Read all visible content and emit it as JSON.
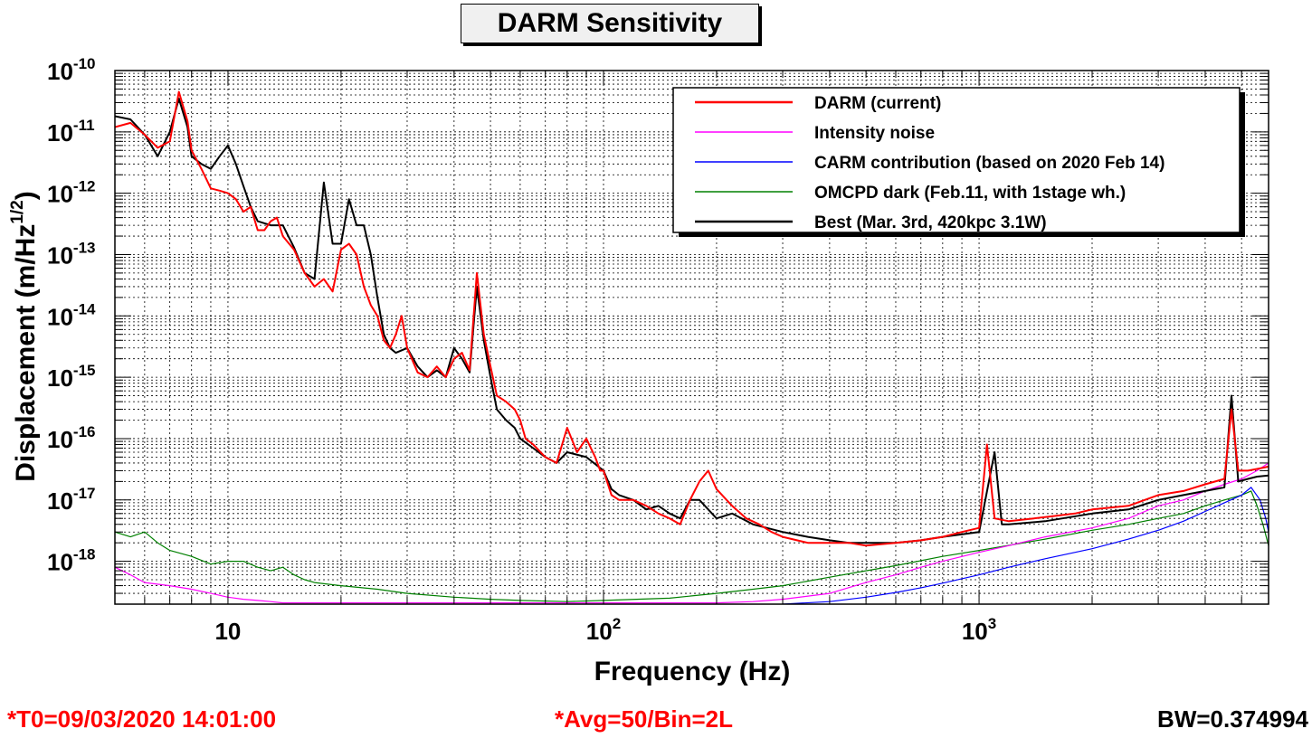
{
  "chart_data": {
    "type": "line",
    "title": "DARM Sensitivity",
    "xlabel": "Frequency (Hz)",
    "ylabel": "Displacement (m/Hz^1/2)",
    "ylabel_main": "Displacement (m/Hz",
    "ylabel_sup": "1/2",
    "ylabel_close": ")",
    "x_scale": "log",
    "y_scale": "log",
    "xlim": [
      5,
      5900
    ],
    "ylim": [
      2e-19,
      1e-10
    ],
    "grid": true,
    "legend_position": "top-right",
    "x_ticks": [
      {
        "value": 10,
        "base": "10",
        "exp": ""
      },
      {
        "value": 100,
        "base": "10",
        "exp": "2"
      },
      {
        "value": 1000,
        "base": "10",
        "exp": "3"
      }
    ],
    "y_ticks": [
      {
        "value": 1e-10,
        "base": "10",
        "exp": "-10"
      },
      {
        "value": 1e-11,
        "base": "10",
        "exp": "-11"
      },
      {
        "value": 1e-12,
        "base": "10",
        "exp": "-12"
      },
      {
        "value": 1e-13,
        "base": "10",
        "exp": "-13"
      },
      {
        "value": 1e-14,
        "base": "10",
        "exp": "-14"
      },
      {
        "value": 1e-15,
        "base": "10",
        "exp": "-15"
      },
      {
        "value": 1e-16,
        "base": "10",
        "exp": "-16"
      },
      {
        "value": 1e-17,
        "base": "10",
        "exp": "-17"
      },
      {
        "value": 1e-18,
        "base": "10",
        "exp": "-18"
      }
    ],
    "series": [
      {
        "name": "DARM (current)",
        "color": "#ff0000",
        "points": [
          [
            5,
            1.2e-11
          ],
          [
            5.5,
            1.4e-11
          ],
          [
            6,
            9e-12
          ],
          [
            6.5,
            5.5e-12
          ],
          [
            7,
            7e-12
          ],
          [
            7.4,
            4.5e-11
          ],
          [
            7.8,
            1.5e-11
          ],
          [
            8,
            5e-12
          ],
          [
            8.5,
            2.5e-12
          ],
          [
            9,
            1.2e-12
          ],
          [
            9.5,
            1.1e-12
          ],
          [
            10,
            1e-12
          ],
          [
            10.5,
            8e-13
          ],
          [
            11,
            5e-13
          ],
          [
            11.5,
            6e-13
          ],
          [
            12,
            2.5e-13
          ],
          [
            12.5,
            2.5e-13
          ],
          [
            13,
            3.5e-13
          ],
          [
            13.5,
            4e-13
          ],
          [
            14,
            2e-13
          ],
          [
            15,
            1.2e-13
          ],
          [
            16,
            5e-14
          ],
          [
            17,
            3e-14
          ],
          [
            18,
            4e-14
          ],
          [
            19,
            2.5e-14
          ],
          [
            20,
            1.2e-13
          ],
          [
            21,
            1.5e-13
          ],
          [
            22,
            1e-13
          ],
          [
            23,
            3e-14
          ],
          [
            24,
            1.5e-14
          ],
          [
            25,
            1e-14
          ],
          [
            26,
            4e-15
          ],
          [
            27,
            3e-15
          ],
          [
            28,
            5e-15
          ],
          [
            29,
            1e-14
          ],
          [
            30,
            3e-15
          ],
          [
            32,
            1.2e-15
          ],
          [
            34,
            1e-15
          ],
          [
            36,
            1.5e-15
          ],
          [
            38,
            1e-15
          ],
          [
            40,
            2e-15
          ],
          [
            42,
            2.5e-15
          ],
          [
            44,
            1.3e-15
          ],
          [
            46,
            5e-14
          ],
          [
            48,
            5e-15
          ],
          [
            50,
            1.5e-15
          ],
          [
            52,
            5e-16
          ],
          [
            55,
            4e-16
          ],
          [
            58,
            3e-16
          ],
          [
            60,
            2e-16
          ],
          [
            62,
            1e-16
          ],
          [
            65,
            8e-17
          ],
          [
            70,
            5e-17
          ],
          [
            75,
            4e-17
          ],
          [
            80,
            1.5e-16
          ],
          [
            85,
            6e-17
          ],
          [
            90,
            1e-16
          ],
          [
            95,
            5e-17
          ],
          [
            98,
            3e-17
          ],
          [
            100,
            3e-17
          ],
          [
            105,
            1.2e-17
          ],
          [
            110,
            1e-17
          ],
          [
            120,
            1e-17
          ],
          [
            130,
            8e-18
          ],
          [
            140,
            6e-18
          ],
          [
            150,
            5e-18
          ],
          [
            160,
            4e-18
          ],
          [
            170,
            1e-17
          ],
          [
            180,
            2e-17
          ],
          [
            190,
            3e-17
          ],
          [
            200,
            1.5e-17
          ],
          [
            220,
            8e-18
          ],
          [
            240,
            5e-18
          ],
          [
            260,
            4e-18
          ],
          [
            280,
            3e-18
          ],
          [
            300,
            2.5e-18
          ],
          [
            350,
            2e-18
          ],
          [
            400,
            2e-18
          ],
          [
            450,
            2e-18
          ],
          [
            500,
            1.8e-18
          ],
          [
            600,
            2e-18
          ],
          [
            700,
            2.2e-18
          ],
          [
            800,
            2.5e-18
          ],
          [
            900,
            3e-18
          ],
          [
            1000,
            3.5e-18
          ],
          [
            1050,
            8e-17
          ],
          [
            1100,
            5e-18
          ],
          [
            1200,
            4.5e-18
          ],
          [
            1400,
            5e-18
          ],
          [
            1600,
            5.5e-18
          ],
          [
            1800,
            6e-18
          ],
          [
            2000,
            7e-18
          ],
          [
            2500,
            8e-18
          ],
          [
            3000,
            1.2e-17
          ],
          [
            3500,
            1.4e-17
          ],
          [
            4000,
            1.8e-17
          ],
          [
            4500,
            2.2e-17
          ],
          [
            4700,
            3e-16
          ],
          [
            4900,
            3e-17
          ],
          [
            5200,
            3e-17
          ],
          [
            5500,
            3.2e-17
          ],
          [
            5900,
            3.5e-17
          ]
        ]
      },
      {
        "name": "Intensity noise",
        "color": "#ff00ff",
        "points": [
          [
            5,
            8e-19
          ],
          [
            5.5,
            6e-19
          ],
          [
            6,
            4.5e-19
          ],
          [
            7,
            4e-19
          ],
          [
            8,
            3.5e-19
          ],
          [
            9,
            3e-19
          ],
          [
            10,
            2.6e-19
          ],
          [
            11,
            2.4e-19
          ],
          [
            12,
            2.3e-19
          ],
          [
            13,
            2.2e-19
          ],
          [
            14,
            2.1e-19
          ],
          [
            200,
            2.1e-19
          ],
          [
            250,
            2.2e-19
          ],
          [
            300,
            2.4e-19
          ],
          [
            400,
            3e-19
          ],
          [
            500,
            4.5e-19
          ],
          [
            600,
            6e-19
          ],
          [
            700,
            8e-19
          ],
          [
            800,
            1e-18
          ],
          [
            1000,
            1.4e-18
          ],
          [
            1200,
            1.8e-18
          ],
          [
            1500,
            2.5e-18
          ],
          [
            2000,
            3.5e-18
          ],
          [
            2500,
            5e-18
          ],
          [
            3000,
            8e-18
          ],
          [
            3500,
            1e-17
          ],
          [
            4000,
            1.4e-17
          ],
          [
            4500,
            1.8e-17
          ],
          [
            5000,
            2.2e-17
          ],
          [
            5500,
            3e-17
          ],
          [
            5900,
            4e-17
          ]
        ]
      },
      {
        "name": "CARM contribution (based on 2020 Feb 14)",
        "color": "#0000ff",
        "points": [
          [
            300,
            2e-19
          ],
          [
            400,
            2.2e-19
          ],
          [
            500,
            2.6e-19
          ],
          [
            600,
            3.1e-19
          ],
          [
            700,
            3.7e-19
          ],
          [
            800,
            4.4e-19
          ],
          [
            1000,
            6e-19
          ],
          [
            1200,
            8e-19
          ],
          [
            1500,
            1.1e-18
          ],
          [
            2000,
            1.6e-18
          ],
          [
            2500,
            2.3e-18
          ],
          [
            3000,
            3.2e-18
          ],
          [
            3500,
            4.5e-18
          ],
          [
            4000,
            6.5e-18
          ],
          [
            4500,
            9e-18
          ],
          [
            5000,
            1.2e-17
          ],
          [
            5300,
            1.6e-17
          ],
          [
            5600,
            1e-17
          ],
          [
            5800,
            5e-18
          ],
          [
            5900,
            3e-18
          ]
        ]
      },
      {
        "name": "OMCPD dark (Feb.11, with 1stage wh.)",
        "color": "#008000",
        "points": [
          [
            5,
            3e-18
          ],
          [
            5.5,
            2.5e-18
          ],
          [
            6,
            3e-18
          ],
          [
            6.5,
            2e-18
          ],
          [
            7,
            1.5e-18
          ],
          [
            8,
            1.2e-18
          ],
          [
            9,
            9e-19
          ],
          [
            10,
            1e-18
          ],
          [
            11,
            1e-18
          ],
          [
            12,
            8e-19
          ],
          [
            13,
            7e-19
          ],
          [
            14,
            8e-19
          ],
          [
            15,
            6e-19
          ],
          [
            16,
            5e-19
          ],
          [
            17,
            4.5e-19
          ],
          [
            20,
            4e-19
          ],
          [
            25,
            3.5e-19
          ],
          [
            30,
            3e-19
          ],
          [
            40,
            2.6e-19
          ],
          [
            50,
            2.4e-19
          ],
          [
            60,
            2.3e-19
          ],
          [
            80,
            2.2e-19
          ],
          [
            100,
            2.3e-19
          ],
          [
            150,
            2.5e-19
          ],
          [
            200,
            3e-19
          ],
          [
            250,
            3.5e-19
          ],
          [
            300,
            4e-19
          ],
          [
            400,
            5.5e-19
          ],
          [
            500,
            7e-19
          ],
          [
            600,
            8.5e-19
          ],
          [
            800,
            1.2e-18
          ],
          [
            1000,
            1.5e-18
          ],
          [
            1500,
            2.3e-18
          ],
          [
            2000,
            3.2e-18
          ],
          [
            2500,
            4e-18
          ],
          [
            3000,
            5e-18
          ],
          [
            3500,
            6e-18
          ],
          [
            4000,
            8e-18
          ],
          [
            4500,
            1e-17
          ],
          [
            5000,
            1.2e-17
          ],
          [
            5300,
            1.4e-17
          ],
          [
            5500,
            8e-18
          ],
          [
            5700,
            4e-18
          ],
          [
            5900,
            1.8e-18
          ]
        ]
      },
      {
        "name": "Best (Mar. 3rd, 420kpc 3.1W)",
        "color": "#000000",
        "points": [
          [
            5,
            1.8e-11
          ],
          [
            5.5,
            1.6e-11
          ],
          [
            6,
            9e-12
          ],
          [
            6.5,
            4e-12
          ],
          [
            7,
            1e-11
          ],
          [
            7.4,
            3.5e-11
          ],
          [
            7.8,
            1.2e-11
          ],
          [
            8,
            4e-12
          ],
          [
            8.5,
            3e-12
          ],
          [
            9,
            2.5e-12
          ],
          [
            9.5,
            4e-12
          ],
          [
            10,
            6e-12
          ],
          [
            10.5,
            3e-12
          ],
          [
            11,
            1.3e-12
          ],
          [
            11.5,
            6e-13
          ],
          [
            12,
            3.5e-13
          ],
          [
            13,
            3e-13
          ],
          [
            14,
            3e-13
          ],
          [
            15,
            1.3e-13
          ],
          [
            16,
            5e-14
          ],
          [
            17,
            4e-14
          ],
          [
            18,
            1.5e-12
          ],
          [
            19,
            1.5e-13
          ],
          [
            20,
            1.5e-13
          ],
          [
            21,
            8e-13
          ],
          [
            22,
            3e-13
          ],
          [
            23,
            3e-13
          ],
          [
            24,
            1e-13
          ],
          [
            25,
            2e-14
          ],
          [
            26,
            5e-15
          ],
          [
            27,
            3e-15
          ],
          [
            28,
            2.5e-15
          ],
          [
            30,
            3e-15
          ],
          [
            32,
            1.5e-15
          ],
          [
            34,
            1e-15
          ],
          [
            36,
            1.3e-15
          ],
          [
            38,
            1e-15
          ],
          [
            40,
            3e-15
          ],
          [
            42,
            2e-15
          ],
          [
            44,
            1.2e-15
          ],
          [
            46,
            3e-14
          ],
          [
            48,
            4e-15
          ],
          [
            50,
            1e-15
          ],
          [
            52,
            3e-16
          ],
          [
            55,
            2e-16
          ],
          [
            58,
            1.5e-16
          ],
          [
            60,
            1e-16
          ],
          [
            65,
            7e-17
          ],
          [
            70,
            5e-17
          ],
          [
            75,
            4e-17
          ],
          [
            80,
            6e-17
          ],
          [
            90,
            5e-17
          ],
          [
            100,
            3e-17
          ],
          [
            105,
            1.5e-17
          ],
          [
            110,
            1.2e-17
          ],
          [
            120,
            1e-17
          ],
          [
            130,
            7e-18
          ],
          [
            140,
            8e-18
          ],
          [
            150,
            6e-18
          ],
          [
            160,
            5e-18
          ],
          [
            170,
            1e-17
          ],
          [
            180,
            1e-17
          ],
          [
            200,
            5e-18
          ],
          [
            220,
            6e-18
          ],
          [
            250,
            4e-18
          ],
          [
            300,
            3e-18
          ],
          [
            350,
            2.5e-18
          ],
          [
            400,
            2.2e-18
          ],
          [
            450,
            2e-18
          ],
          [
            500,
            2e-18
          ],
          [
            600,
            2e-18
          ],
          [
            700,
            2.2e-18
          ],
          [
            800,
            2.5e-18
          ],
          [
            1000,
            3e-18
          ],
          [
            1100,
            6e-17
          ],
          [
            1150,
            4e-18
          ],
          [
            1200,
            4e-18
          ],
          [
            1500,
            4.5e-18
          ],
          [
            2000,
            6e-18
          ],
          [
            2500,
            7e-18
          ],
          [
            3000,
            1e-17
          ],
          [
            3500,
            1.2e-17
          ],
          [
            4000,
            1.4e-17
          ],
          [
            4500,
            1.6e-17
          ],
          [
            4700,
            5e-16
          ],
          [
            4900,
            2e-17
          ],
          [
            5200,
            2.2e-17
          ],
          [
            5500,
            2.4e-17
          ],
          [
            5900,
            2.5e-17
          ]
        ]
      }
    ]
  },
  "footer": {
    "t0": "*T0=09/03/2020 14:01:00",
    "avg": "*Avg=50/Bin=2L",
    "bw": "BW=0.374994"
  }
}
